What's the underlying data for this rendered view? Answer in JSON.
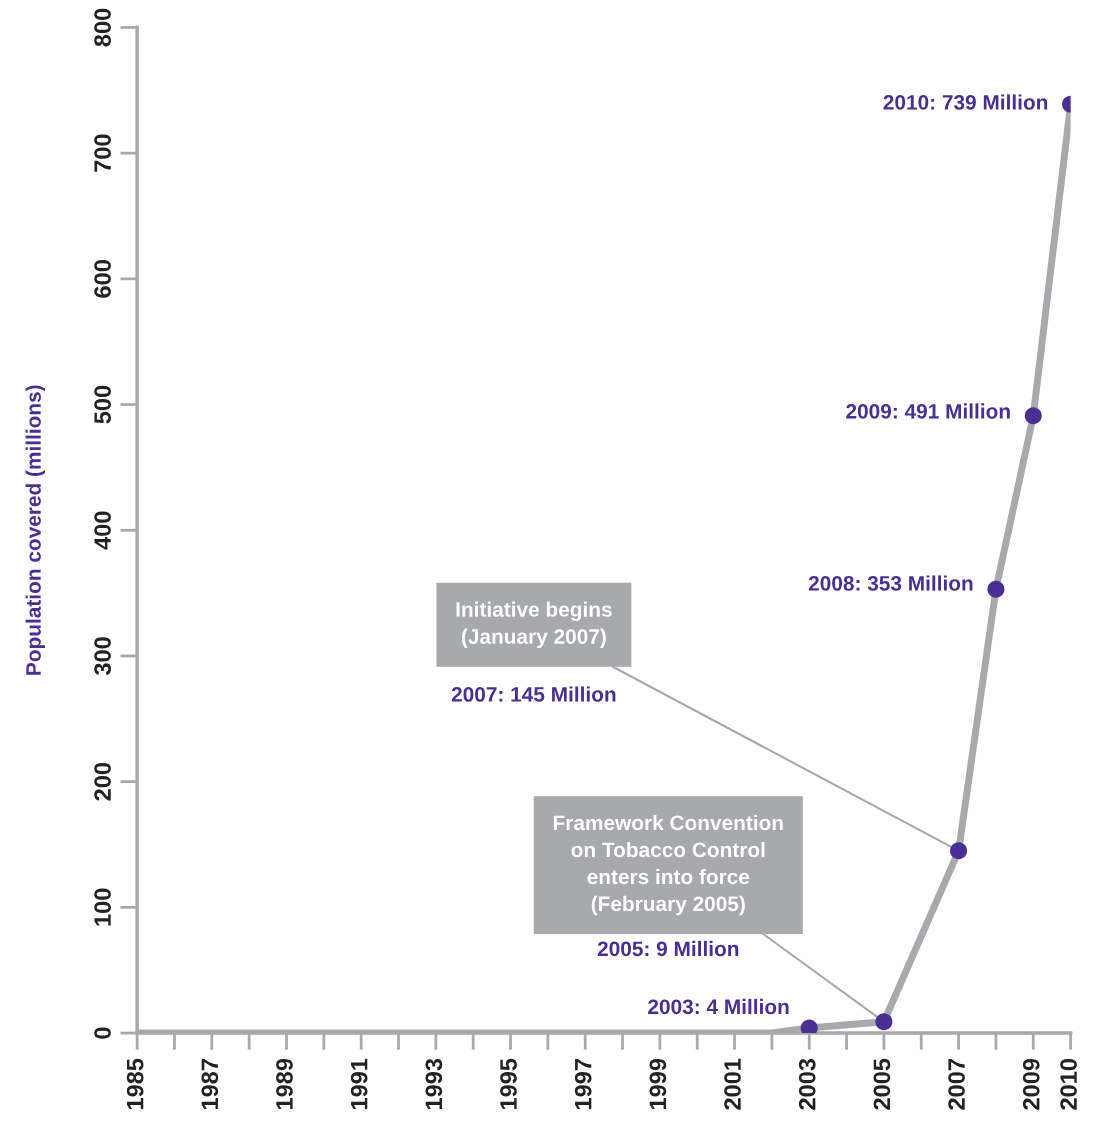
{
  "chart_data": {
    "type": "line",
    "ylabel": "Population covered (millions)",
    "xlim": [
      1985,
      2010
    ],
    "ylim": [
      0,
      800
    ],
    "xticks": [
      1985,
      1987,
      1989,
      1991,
      1993,
      1995,
      1997,
      1999,
      2001,
      2003,
      2005,
      2007,
      2009,
      2010
    ],
    "yticks": [
      0,
      100,
      200,
      300,
      400,
      500,
      600,
      700,
      800
    ],
    "grid": false,
    "legend": false,
    "series": [
      {
        "color": "#a7a9ac",
        "marker": "none",
        "line_style": "solid",
        "x": [
          1985,
          2002,
          2003,
          2005,
          2007,
          2008,
          2009,
          2010
        ],
        "values": [
          0,
          0,
          4,
          9,
          145,
          353,
          491,
          739
        ]
      },
      {
        "type": "scatter",
        "color": "#4b2e91",
        "marker": "circle",
        "x": [
          2003,
          2005,
          2007,
          2008,
          2009,
          2010
        ],
        "values": [
          4,
          9,
          145,
          353,
          491,
          739
        ]
      }
    ],
    "annotations": [
      {
        "text": "2003: 4 Million",
        "x": 2003,
        "y": 4
      },
      {
        "text": "2005: 9 Million",
        "x": 2005,
        "y": 9
      },
      {
        "text": "Framework Convention\non Tobacco Control\nenters into force\n(February 2005)",
        "x": 2005,
        "y": 9
      },
      {
        "text": "2007: 145 Million",
        "x": 2007,
        "y": 145
      },
      {
        "text": "Initiative begins\n(January 2007)",
        "x": 2007,
        "y": 145
      },
      {
        "text": "2008: 353 Million",
        "x": 2008,
        "y": 353
      },
      {
        "text": "2009: 491 Million",
        "x": 2009,
        "y": 491
      },
      {
        "text": "2010: 739 Million",
        "x": 2010,
        "y": 739
      }
    ]
  }
}
